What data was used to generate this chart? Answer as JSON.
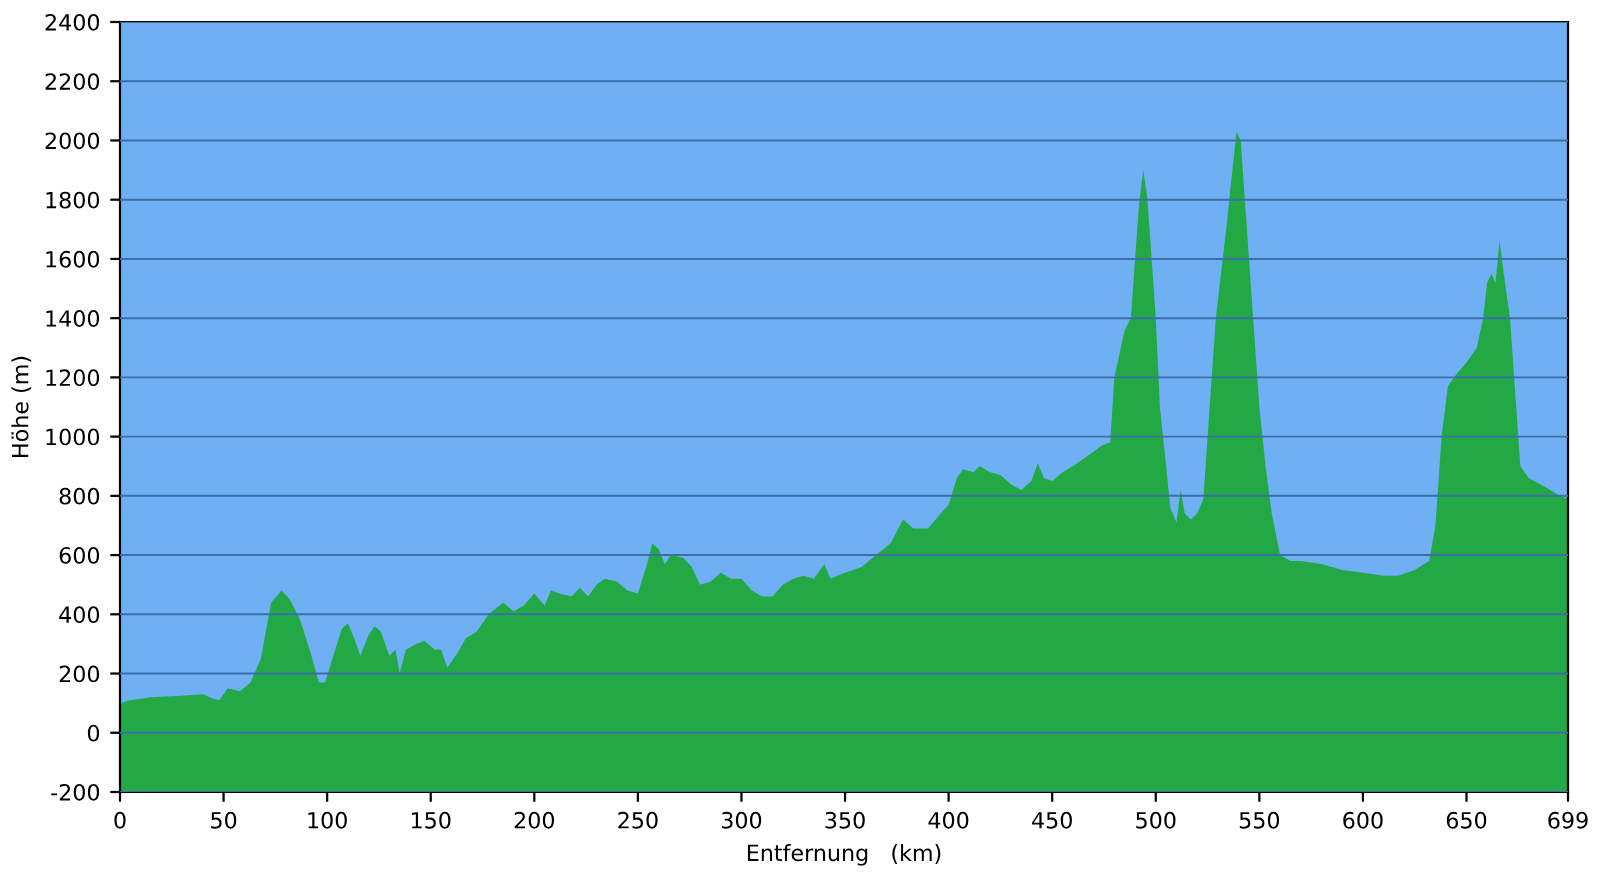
{
  "chart_data": {
    "type": "area",
    "xlabel": "Entfernung   (km)",
    "ylabel": "Höhe (m)",
    "x": [
      0,
      5,
      15,
      30,
      40,
      45,
      48,
      52,
      58,
      63,
      68,
      73,
      78,
      82,
      87,
      92,
      96,
      99,
      103,
      107,
      110,
      113,
      116,
      120,
      123,
      126,
      130,
      133,
      135,
      138,
      143,
      147,
      152,
      155,
      158,
      163,
      167,
      172,
      178,
      185,
      190,
      195,
      200,
      205,
      208,
      212,
      218,
      222,
      226,
      230,
      234,
      240,
      245,
      250,
      254,
      257,
      260,
      263,
      266,
      272,
      276,
      280,
      285,
      290,
      295,
      300,
      305,
      310,
      315,
      320,
      325,
      330,
      335,
      340,
      343,
      350,
      358,
      365,
      372,
      375,
      378,
      383,
      390,
      395,
      400,
      404,
      407,
      412,
      415,
      420,
      425,
      430,
      435,
      440,
      443,
      446,
      450,
      455,
      460,
      468,
      474,
      478,
      480,
      485,
      488,
      490,
      492,
      494,
      496,
      498,
      500,
      502,
      505,
      507,
      510,
      512,
      514,
      517,
      520,
      523,
      526,
      529,
      531,
      534,
      537,
      539,
      541,
      543,
      545,
      547,
      550,
      553,
      556,
      560,
      565,
      570,
      580,
      590,
      600,
      610,
      617,
      625,
      632,
      635,
      638,
      641,
      645,
      650,
      655,
      658,
      660,
      662,
      664,
      666,
      668,
      671,
      673,
      676,
      680,
      688,
      695,
      699
    ],
    "series": [
      {
        "color": "#22a844",
        "values": [
          100,
          110,
          120,
          125,
          130,
          115,
          110,
          150,
          140,
          170,
          250,
          440,
          480,
          450,
          380,
          270,
          170,
          170,
          260,
          350,
          370,
          320,
          260,
          330,
          360,
          340,
          260,
          280,
          200,
          280,
          300,
          310,
          280,
          280,
          220,
          270,
          320,
          340,
          400,
          440,
          410,
          430,
          470,
          430,
          480,
          470,
          460,
          490,
          460,
          500,
          520,
          510,
          480,
          470,
          560,
          640,
          620,
          570,
          600,
          590,
          560,
          500,
          510,
          540,
          520,
          520,
          480,
          460,
          460,
          500,
          520,
          530,
          520,
          570,
          520,
          540,
          560,
          600,
          640,
          680,
          720,
          690,
          690,
          730,
          770,
          860,
          890,
          880,
          900,
          880,
          870,
          840,
          820,
          850,
          910,
          860,
          850,
          880,
          900,
          940,
          970,
          980,
          1200,
          1360,
          1400,
          1600,
          1790,
          1900,
          1800,
          1600,
          1400,
          1100,
          900,
          760,
          710,
          820,
          740,
          720,
          740,
          790,
          1100,
          1400,
          1520,
          1700,
          1900,
          2030,
          2000,
          1800,
          1600,
          1400,
          1100,
          900,
          740,
          600,
          580,
          580,
          570,
          550,
          540,
          530,
          530,
          550,
          580,
          700,
          1000,
          1170,
          1210,
          1250,
          1300,
          1400,
          1520,
          1550,
          1520,
          1660,
          1550,
          1400,
          1200,
          900,
          860,
          830,
          800,
          790
        ]
      }
    ],
    "xlim": [
      0,
      699
    ],
    "xticks": [
      0,
      50,
      100,
      150,
      200,
      250,
      300,
      350,
      400,
      450,
      500,
      550,
      600,
      650,
      699
    ],
    "ylim": [
      -200,
      2400
    ],
    "yticks": [
      -200,
      0,
      200,
      400,
      600,
      800,
      1000,
      1200,
      1400,
      1600,
      1800,
      2000,
      2200,
      2400
    ],
    "grid": "y",
    "legend": false
  }
}
